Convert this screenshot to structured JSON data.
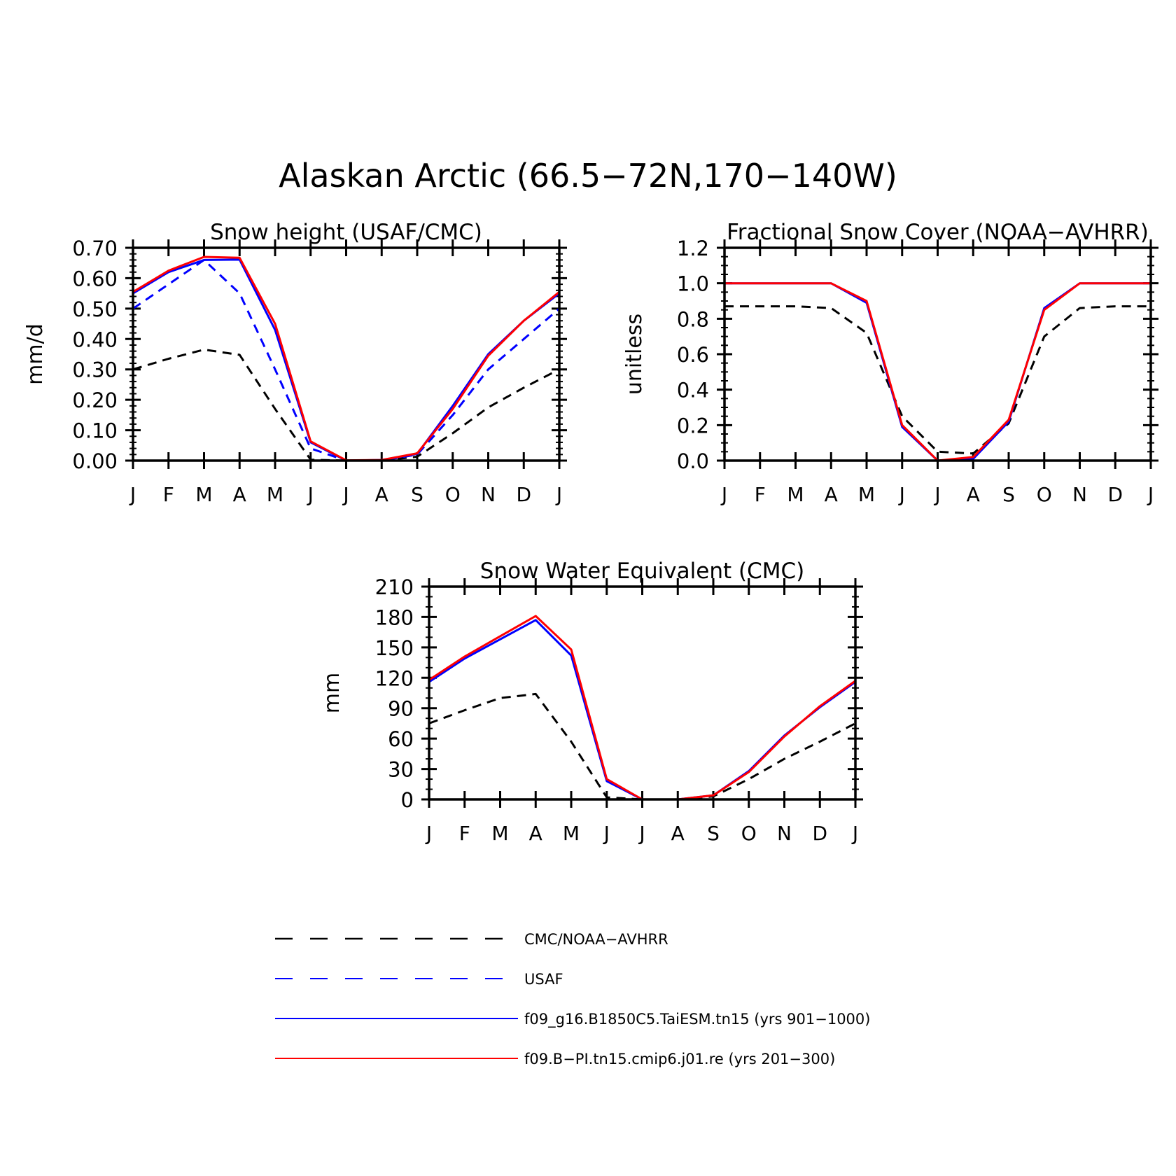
{
  "figure": {
    "title": "Alaskan Arctic (66.5−72N,170−140W)"
  },
  "months": [
    "J",
    "F",
    "M",
    "A",
    "M",
    "J",
    "J",
    "A",
    "S",
    "O",
    "N",
    "D",
    "J"
  ],
  "series_style": [
    {
      "key": "obs",
      "color": "#000000",
      "dashed": true
    },
    {
      "key": "usaf",
      "color": "#0000ff",
      "dashed": true
    },
    {
      "key": "taiesm",
      "color": "#0000ff",
      "dashed": false
    },
    {
      "key": "cmip6",
      "color": "#ff0000",
      "dashed": false
    }
  ],
  "legend": [
    {
      "key": "obs",
      "label": "CMC/NOAA−AVHRR"
    },
    {
      "key": "usaf",
      "label": "USAF"
    },
    {
      "key": "taiesm",
      "label": "f09_g16.B1850C5.TaiESM.tn15 (yrs 901−1000)"
    },
    {
      "key": "cmip6",
      "label": "f09.B−PI.tn15.cmip6.j01.re (yrs 201−300)"
    }
  ],
  "chart_data": [
    {
      "type": "line",
      "title": "Snow height (USAF/CMC)",
      "xlabel": "",
      "ylabel": "mm/d",
      "categories": [
        "J",
        "F",
        "M",
        "A",
        "M",
        "J",
        "J",
        "A",
        "S",
        "O",
        "N",
        "D",
        "J"
      ],
      "ylim": [
        0,
        0.7
      ],
      "yticks": [
        "0.00",
        "0.10",
        "0.20",
        "0.30",
        "0.40",
        "0.50",
        "0.60",
        "0.70"
      ],
      "series": [
        {
          "key": "obs",
          "name": "CMC/NOAA−AVHRR",
          "values": [
            0.3,
            0.335,
            0.365,
            0.348,
            0.17,
            0.003,
            0.0,
            0.0,
            0.013,
            0.09,
            0.175,
            0.24,
            0.3
          ]
        },
        {
          "key": "usaf",
          "name": "USAF",
          "values": [
            0.5,
            0.58,
            0.66,
            0.55,
            0.3,
            0.04,
            0.0,
            0.0,
            0.02,
            0.15,
            0.3,
            0.4,
            0.5
          ]
        },
        {
          "key": "taiesm",
          "name": "f09_g16.B1850C5.TaiESM.tn15 (yrs 901−1000)",
          "values": [
            0.55,
            0.62,
            0.66,
            0.661,
            0.43,
            0.06,
            0.0,
            0.002,
            0.022,
            0.18,
            0.35,
            0.46,
            0.55
          ]
        },
        {
          "key": "cmip6",
          "name": "f09.B−PI.tn15.cmip6.j01.re (yrs 201−300)",
          "values": [
            0.555,
            0.625,
            0.67,
            0.667,
            0.45,
            0.063,
            0.001,
            0.002,
            0.024,
            0.17,
            0.345,
            0.46,
            0.555
          ]
        }
      ]
    },
    {
      "type": "line",
      "title": "Fractional Snow Cover (NOAA−AVHRR)",
      "xlabel": "",
      "ylabel": "unitless",
      "categories": [
        "J",
        "F",
        "M",
        "A",
        "M",
        "J",
        "J",
        "A",
        "S",
        "O",
        "N",
        "D",
        "J"
      ],
      "ylim": [
        0,
        1.2
      ],
      "yticks": [
        "0.0",
        "0.2",
        "0.4",
        "0.6",
        "0.8",
        "1.0",
        "1.2"
      ],
      "series": [
        {
          "key": "obs",
          "name": "CMC/NOAA−AVHRR",
          "values": [
            0.87,
            0.87,
            0.87,
            0.86,
            0.72,
            0.25,
            0.05,
            0.04,
            0.21,
            0.7,
            0.86,
            0.87,
            0.87
          ]
        },
        {
          "key": "taiesm",
          "name": "f09_g16.B1850C5.TaiESM.tn15 (yrs 901−1000)",
          "values": [
            1.0,
            1.0,
            1.0,
            1.0,
            0.89,
            0.19,
            0.0,
            0.01,
            0.22,
            0.86,
            1.0,
            1.0,
            1.0
          ]
        },
        {
          "key": "cmip6",
          "name": "f09.B−PI.tn15.cmip6.j01.re (yrs 201−300)",
          "values": [
            1.0,
            1.0,
            1.0,
            1.0,
            0.9,
            0.2,
            0.0,
            0.02,
            0.23,
            0.85,
            1.0,
            1.0,
            1.0
          ]
        }
      ]
    },
    {
      "type": "line",
      "title": "Snow Water Equivalent (CMC)",
      "xlabel": "",
      "ylabel": "mm",
      "categories": [
        "J",
        "F",
        "M",
        "A",
        "M",
        "J",
        "J",
        "A",
        "S",
        "O",
        "N",
        "D",
        "J"
      ],
      "ylim": [
        0,
        210
      ],
      "yticks": [
        "0",
        "30",
        "60",
        "90",
        "120",
        "150",
        "180",
        "210"
      ],
      "series": [
        {
          "key": "obs",
          "name": "CMC/NOAA−AVHRR",
          "values": [
            75,
            88,
            100,
            104,
            57,
            2,
            0,
            0,
            3,
            20,
            40,
            57,
            75
          ]
        },
        {
          "key": "taiesm",
          "name": "f09_g16.B1850C5.TaiESM.tn15 (yrs 901−1000)",
          "values": [
            116,
            139,
            158,
            177,
            142,
            18,
            0,
            0,
            4,
            28,
            63,
            91,
            116
          ]
        },
        {
          "key": "cmip6",
          "name": "f09.B−PI.tn15.cmip6.j01.re (yrs 201−300)",
          "values": [
            118,
            141,
            161,
            181,
            148,
            20,
            0,
            0,
            4,
            27,
            62,
            92,
            117
          ]
        }
      ]
    }
  ]
}
